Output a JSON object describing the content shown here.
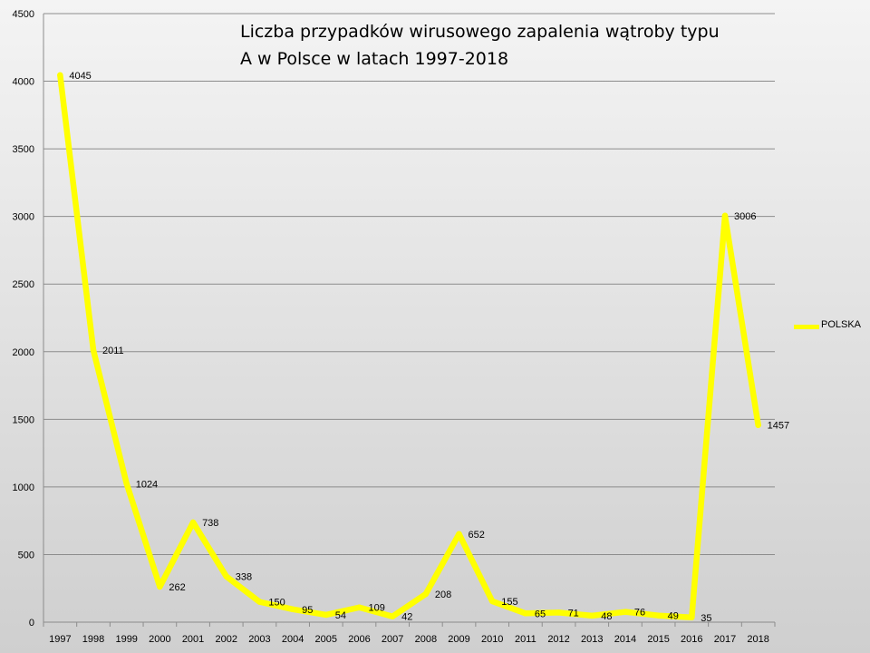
{
  "chart_data": {
    "type": "line",
    "title_lines": [
      "Liczba przypadków wirusowego zapalenia wątroby typu",
      "A w Polsce w latach 1997-2018"
    ],
    "x": [
      "1997",
      "1998",
      "1999",
      "2000",
      "2001",
      "2002",
      "2003",
      "2004",
      "2005",
      "2006",
      "2007",
      "2008",
      "2009",
      "2010",
      "2011",
      "2012",
      "2013",
      "2014",
      "2015",
      "2016",
      "2017",
      "2018"
    ],
    "series": [
      {
        "name": "POLSKA",
        "color": "#ffff00",
        "values": [
          4045,
          2011,
          1024,
          262,
          738,
          338,
          150,
          95,
          54,
          109,
          42,
          208,
          652,
          155,
          65,
          71,
          48,
          76,
          49,
          35,
          3006,
          1457
        ]
      }
    ],
    "y_ticks": [
      0,
      500,
      1000,
      1500,
      2000,
      2500,
      3000,
      3500,
      4000,
      4500
    ],
    "ylim": [
      0,
      4500
    ],
    "grid": true,
    "legend_position": "right"
  }
}
